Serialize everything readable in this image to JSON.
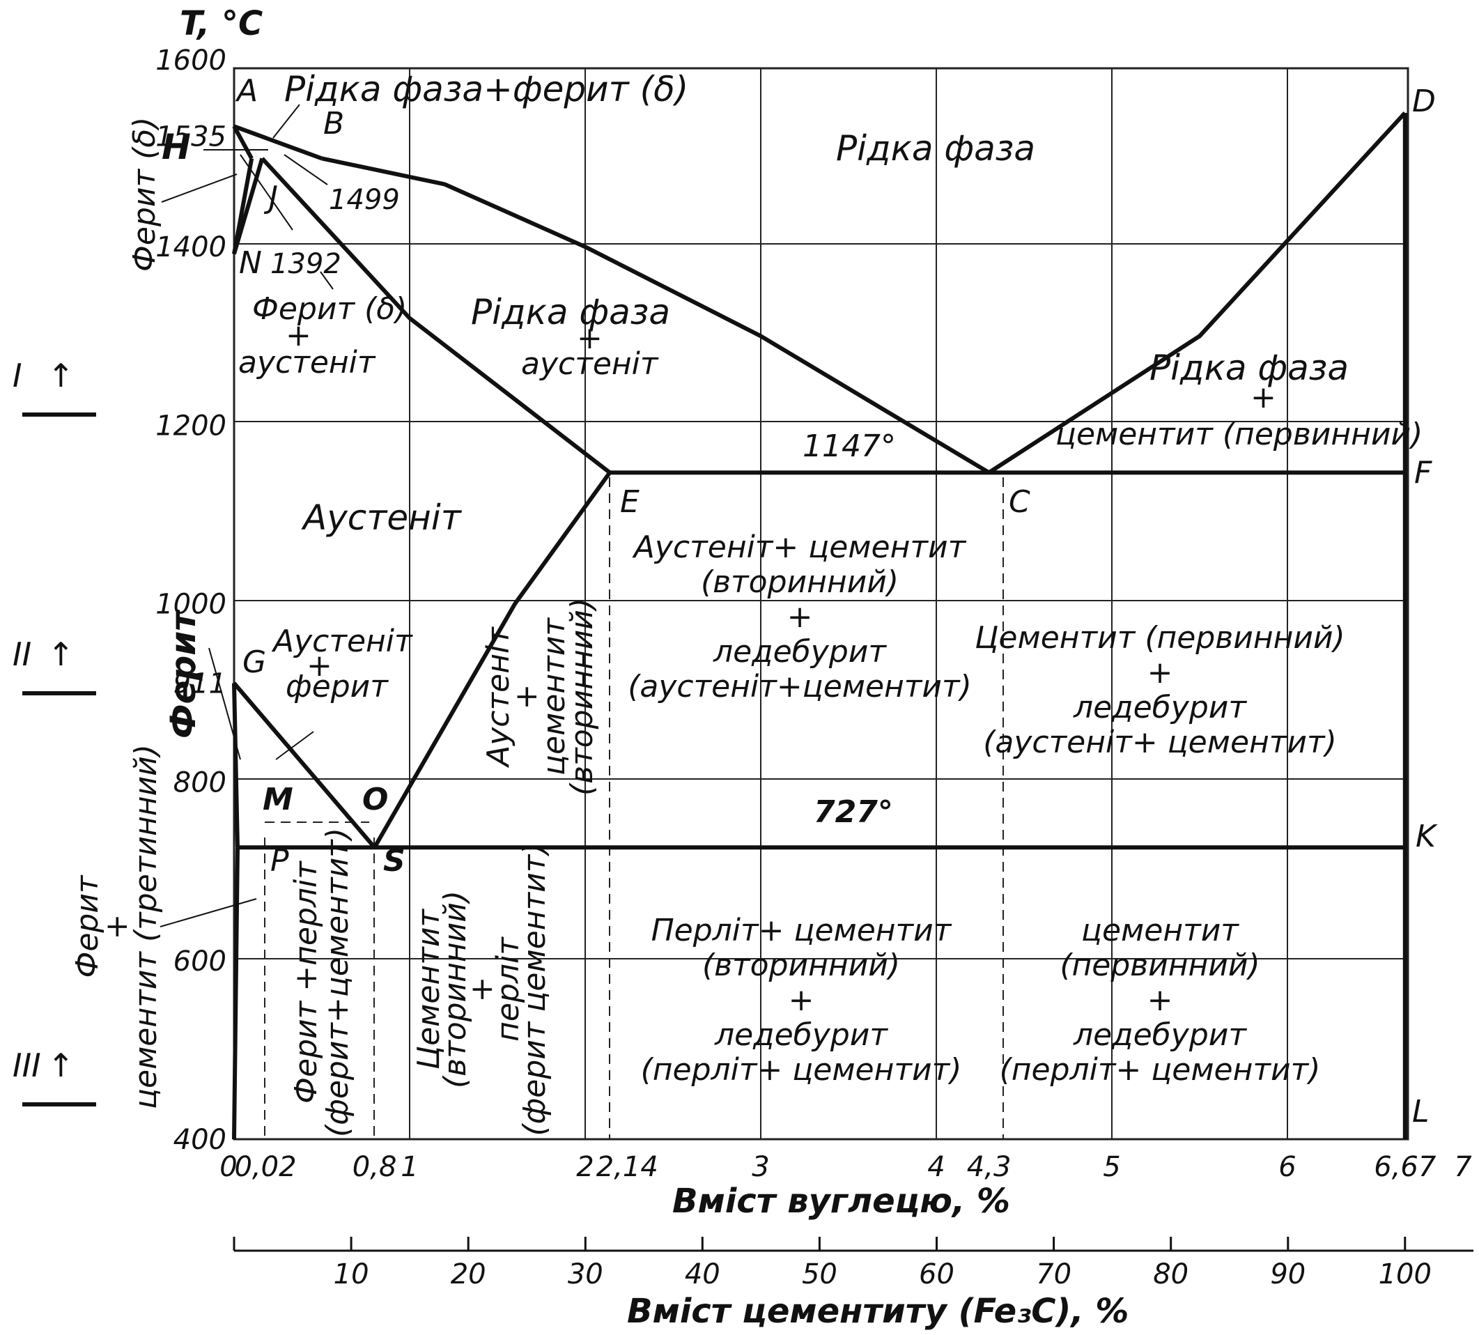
{
  "title": "",
  "temp_axis": {
    "label": "T, °C",
    "ticks": [
      {
        "v": 1600,
        "t": "1600"
      },
      {
        "v": 1535,
        "t": "1535"
      },
      {
        "v": 1400,
        "t": "1400"
      },
      {
        "v": 1200,
        "t": "1200"
      },
      {
        "v": 1000,
        "t": "1000"
      },
      {
        "v": 911,
        "t": "911"
      },
      {
        "v": 800,
        "t": "800"
      },
      {
        "v": 600,
        "t": "600"
      },
      {
        "v": 400,
        "t": "400"
      }
    ],
    "range": [
      400,
      1600
    ]
  },
  "carbon_axis": {
    "label": "Вміст вуглецю,   %",
    "ticks": [
      {
        "v": 0,
        "t": "0"
      },
      {
        "v": 0.02,
        "t": "0,02"
      },
      {
        "v": 0.8,
        "t": "0,8"
      },
      {
        "v": 1,
        "t": "1"
      },
      {
        "v": 2,
        "t": "2"
      },
      {
        "v": 2.14,
        "t": "2,14"
      },
      {
        "v": 3,
        "t": "3"
      },
      {
        "v": 4,
        "t": "4"
      },
      {
        "v": 4.3,
        "t": "4,3"
      },
      {
        "v": 5,
        "t": "5"
      },
      {
        "v": 6,
        "t": "6"
      },
      {
        "v": 6.67,
        "t": "6,67"
      },
      {
        "v": 7,
        "t": "7"
      }
    ],
    "range": [
      0,
      7
    ]
  },
  "cementite_axis": {
    "label": "Вміст   цементиту (Fe₃C), %",
    "ticks": [
      "10",
      "20",
      "30",
      "40",
      "50",
      "60",
      "70",
      "80",
      "90",
      "100"
    ],
    "range": [
      0,
      100
    ]
  },
  "points": {
    "A": "A",
    "B": "B",
    "D": "D",
    "H": "H",
    "J": "J",
    "N": "N",
    "G": "G",
    "E": "E",
    "C": "C",
    "F": "F",
    "M": "M",
    "O": "O",
    "P": "P",
    "S": "S",
    "K": "K",
    "L": "L"
  },
  "temperature_marks": {
    "t1499": "1499",
    "t1392": "1392",
    "t1147": "1147°",
    "t727": "727°"
  },
  "regions": {
    "liq_ferrite": "Рідка  фаза+ферит (δ)",
    "liquid": "Рідка  фаза",
    "ferrite_delta_side": "Ферит (δ)",
    "ferrite_aust_1": "Ферит (δ)",
    "ferrite_aust_plus": "+",
    "ferrite_aust_2": "аустеніт",
    "liq_aust_1": "Рідка  фаза",
    "liq_aust_plus": "+",
    "liq_aust_2": "аустеніт",
    "liq_cem_1": "Рідка  фаза",
    "liq_cem_plus": "+",
    "liq_cem_2": "цементит (первинний)",
    "austenite": "Аустеніт",
    "aust_ferr_1": "Аустеніт",
    "aust_ferr_plus": "+",
    "aust_ferr_2": "ферит",
    "ferrite_side": "Ферит",
    "aust_cem_vert": [
      "Аустеніт",
      "+",
      "цементит",
      "(вторинний)"
    ],
    "mid_high": [
      "Аустеніт+ цементит",
      "(вторинний)",
      "+",
      "ледебурит",
      "(аустеніт+цементит)"
    ],
    "right_high": [
      "Цементит (первинний)",
      "+",
      "ледебурит",
      "(аустеніт+ цементит)"
    ],
    "fer_perl_vert": [
      "Ферит +перліт",
      "(ферит+цементит)"
    ],
    "cem_perl_vert": [
      "Цементит",
      "(вторинний)",
      "+",
      "перліт",
      "(ферит цементит)"
    ],
    "mid_low": [
      "Перліт+ цементит",
      "(вторинний)",
      "+",
      "ледебурит",
      "(перліт+ цементит)"
    ],
    "right_low": [
      "цементит",
      "(первинний)",
      "+",
      "ледебурит",
      "(перліт+ цементит)"
    ],
    "fer_cem_left": [
      "Ферит",
      "+",
      "цементит (третинний)"
    ]
  },
  "side_markers": [
    {
      "label": "I",
      "arrow": "↑"
    },
    {
      "label": "II",
      "arrow": "↑"
    },
    {
      "label": "III",
      "arrow": "↑"
    }
  ],
  "phase_lines": [
    {
      "name": "AB",
      "pts": [
        [
          0,
          1535
        ],
        [
          0.5,
          1499
        ]
      ]
    },
    {
      "name": "BC",
      "pts": [
        [
          0.5,
          1499
        ],
        [
          1.2,
          1470
        ],
        [
          2,
          1400
        ],
        [
          3,
          1300
        ],
        [
          4.3,
          1147
        ]
      ]
    },
    {
      "name": "CD",
      "pts": [
        [
          4.3,
          1147
        ],
        [
          5.5,
          1300
        ],
        [
          6.67,
          1550
        ]
      ]
    },
    {
      "name": "AH",
      "pts": [
        [
          0,
          1535
        ],
        [
          0.1,
          1499
        ]
      ]
    },
    {
      "name": "HN",
      "pts": [
        [
          0.1,
          1499
        ],
        [
          0,
          1392
        ]
      ]
    },
    {
      "name": "JN",
      "pts": [
        [
          0.16,
          1499
        ],
        [
          0,
          1392
        ]
      ]
    },
    {
      "name": "JE",
      "pts": [
        [
          0.16,
          1499
        ],
        [
          1.0,
          1320
        ],
        [
          2.14,
          1147
        ]
      ]
    },
    {
      "name": "ECF",
      "pts": [
        [
          2.14,
          1147
        ],
        [
          6.67,
          1147
        ]
      ]
    },
    {
      "name": "ES",
      "pts": [
        [
          2.14,
          1147
        ],
        [
          1.6,
          1000
        ],
        [
          0.8,
          727
        ]
      ]
    },
    {
      "name": "GS",
      "pts": [
        [
          0,
          911
        ],
        [
          0.8,
          727
        ]
      ]
    },
    {
      "name": "GP",
      "pts": [
        [
          0,
          911
        ],
        [
          0.02,
          727
        ]
      ]
    },
    {
      "name": "PSK",
      "pts": [
        [
          0.02,
          727
        ],
        [
          6.67,
          727
        ]
      ]
    },
    {
      "name": "PQ",
      "pts": [
        [
          0.02,
          727
        ],
        [
          0,
          400
        ]
      ]
    },
    {
      "name": "DL",
      "pts": [
        [
          6.67,
          1550
        ],
        [
          6.67,
          400
        ]
      ]
    }
  ]
}
